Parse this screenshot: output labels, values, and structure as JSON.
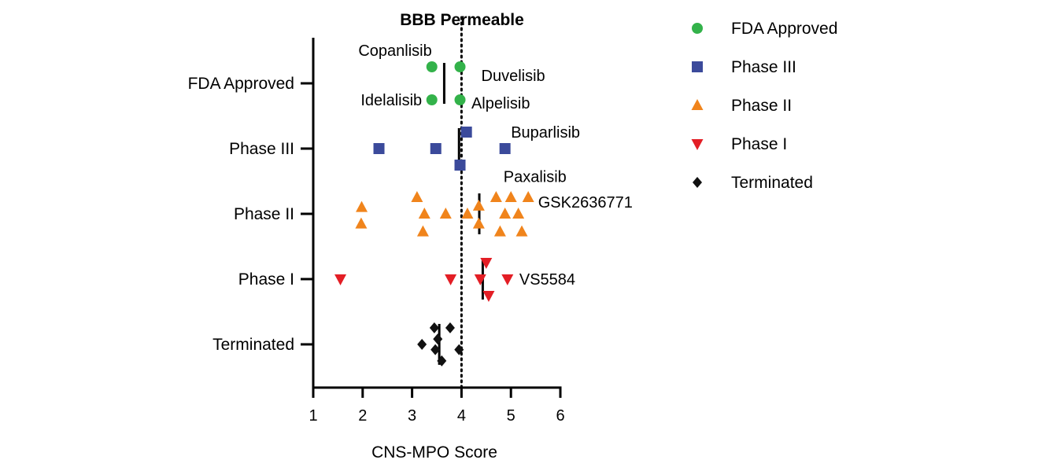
{
  "chart_data": {
    "type": "scatter",
    "title": "BBB Permeable",
    "xlabel": "CNS-MPO Score",
    "ylabel": "",
    "xlim": [
      1,
      6
    ],
    "xticks": [
      1,
      2,
      3,
      4,
      5,
      6
    ],
    "categories": [
      "FDA Approved",
      "Phase III",
      "Phase II",
      "Phase I",
      "Terminated"
    ],
    "threshold": 4.0,
    "legend_position": "right",
    "series": [
      {
        "name": "FDA Approved",
        "marker": "circle",
        "color": "#33b24a",
        "median": 3.65,
        "points": [
          {
            "x": 3.4,
            "offset": -0.25
          },
          {
            "x": 3.97,
            "offset": -0.25
          },
          {
            "x": 3.4,
            "offset": 0.25
          },
          {
            "x": 3.97,
            "offset": 0.25
          }
        ]
      },
      {
        "name": "Phase III",
        "marker": "square",
        "color": "#3b4a9b",
        "median": 3.95,
        "points": [
          {
            "x": 4.1,
            "offset": -0.25
          },
          {
            "x": 2.33,
            "offset": 0
          },
          {
            "x": 3.48,
            "offset": 0
          },
          {
            "x": 4.88,
            "offset": 0
          },
          {
            "x": 3.97,
            "offset": 0.25
          }
        ]
      },
      {
        "name": "Phase II",
        "marker": "triangle-up",
        "color": "#f0841c",
        "median": 4.36,
        "points": [
          {
            "x": 3.1,
            "offset": -0.25
          },
          {
            "x": 4.35,
            "offset": -0.12
          },
          {
            "x": 4.7,
            "offset": -0.25
          },
          {
            "x": 5.0,
            "offset": -0.25
          },
          {
            "x": 5.35,
            "offset": -0.25
          },
          {
            "x": 1.98,
            "offset": -0.1
          },
          {
            "x": 3.25,
            "offset": 0
          },
          {
            "x": 3.68,
            "offset": 0
          },
          {
            "x": 4.12,
            "offset": 0
          },
          {
            "x": 4.88,
            "offset": 0
          },
          {
            "x": 5.15,
            "offset": 0
          },
          {
            "x": 1.97,
            "offset": 0.15
          },
          {
            "x": 4.35,
            "offset": 0.15
          },
          {
            "x": 3.22,
            "offset": 0.27
          },
          {
            "x": 4.78,
            "offset": 0.27
          },
          {
            "x": 5.22,
            "offset": 0.27
          }
        ]
      },
      {
        "name": "Phase I",
        "marker": "triangle-down",
        "color": "#e31e25",
        "median": 4.43,
        "points": [
          {
            "x": 4.5,
            "offset": -0.25
          },
          {
            "x": 1.55,
            "offset": 0
          },
          {
            "x": 3.78,
            "offset": 0
          },
          {
            "x": 4.38,
            "offset": 0
          },
          {
            "x": 4.93,
            "offset": 0
          },
          {
            "x": 4.55,
            "offset": 0.25
          }
        ]
      },
      {
        "name": "Terminated",
        "marker": "diamond",
        "color": "#111111",
        "median": 3.55,
        "points": [
          {
            "x": 3.45,
            "offset": -0.25
          },
          {
            "x": 3.77,
            "offset": -0.25
          },
          {
            "x": 3.52,
            "offset": -0.08
          },
          {
            "x": 3.2,
            "offset": 0
          },
          {
            "x": 3.95,
            "offset": 0.08
          },
          {
            "x": 3.47,
            "offset": 0.08
          },
          {
            "x": 3.6,
            "offset": 0.25
          }
        ]
      }
    ],
    "annotations": [
      {
        "text": "Copanlisib",
        "anchor_x": 3.4,
        "category": "FDA Approved",
        "offset": -0.5,
        "align": "end"
      },
      {
        "text": "Duvelisib",
        "anchor_x": 4.4,
        "category": "FDA Approved",
        "offset": -0.12,
        "align": "start"
      },
      {
        "text": "Idelalisib",
        "anchor_x": 3.2,
        "category": "FDA Approved",
        "offset": 0.25,
        "align": "end"
      },
      {
        "text": "Alpelisib",
        "anchor_x": 4.2,
        "category": "FDA Approved",
        "offset": 0.3,
        "align": "start"
      },
      {
        "text": "Buparlisib",
        "anchor_x": 5.0,
        "category": "Phase III",
        "offset": -0.25,
        "align": "start"
      },
      {
        "text": "Paxalisib",
        "anchor_x": 4.85,
        "category": "Phase III",
        "offset": 0.42,
        "align": "start"
      },
      {
        "text": "GSK2636771",
        "anchor_x": 5.55,
        "category": "Phase II",
        "offset": -0.18,
        "align": "start"
      },
      {
        "text": "VS5584",
        "anchor_x": 5.17,
        "category": "Phase I",
        "offset": 0,
        "align": "start"
      }
    ]
  }
}
